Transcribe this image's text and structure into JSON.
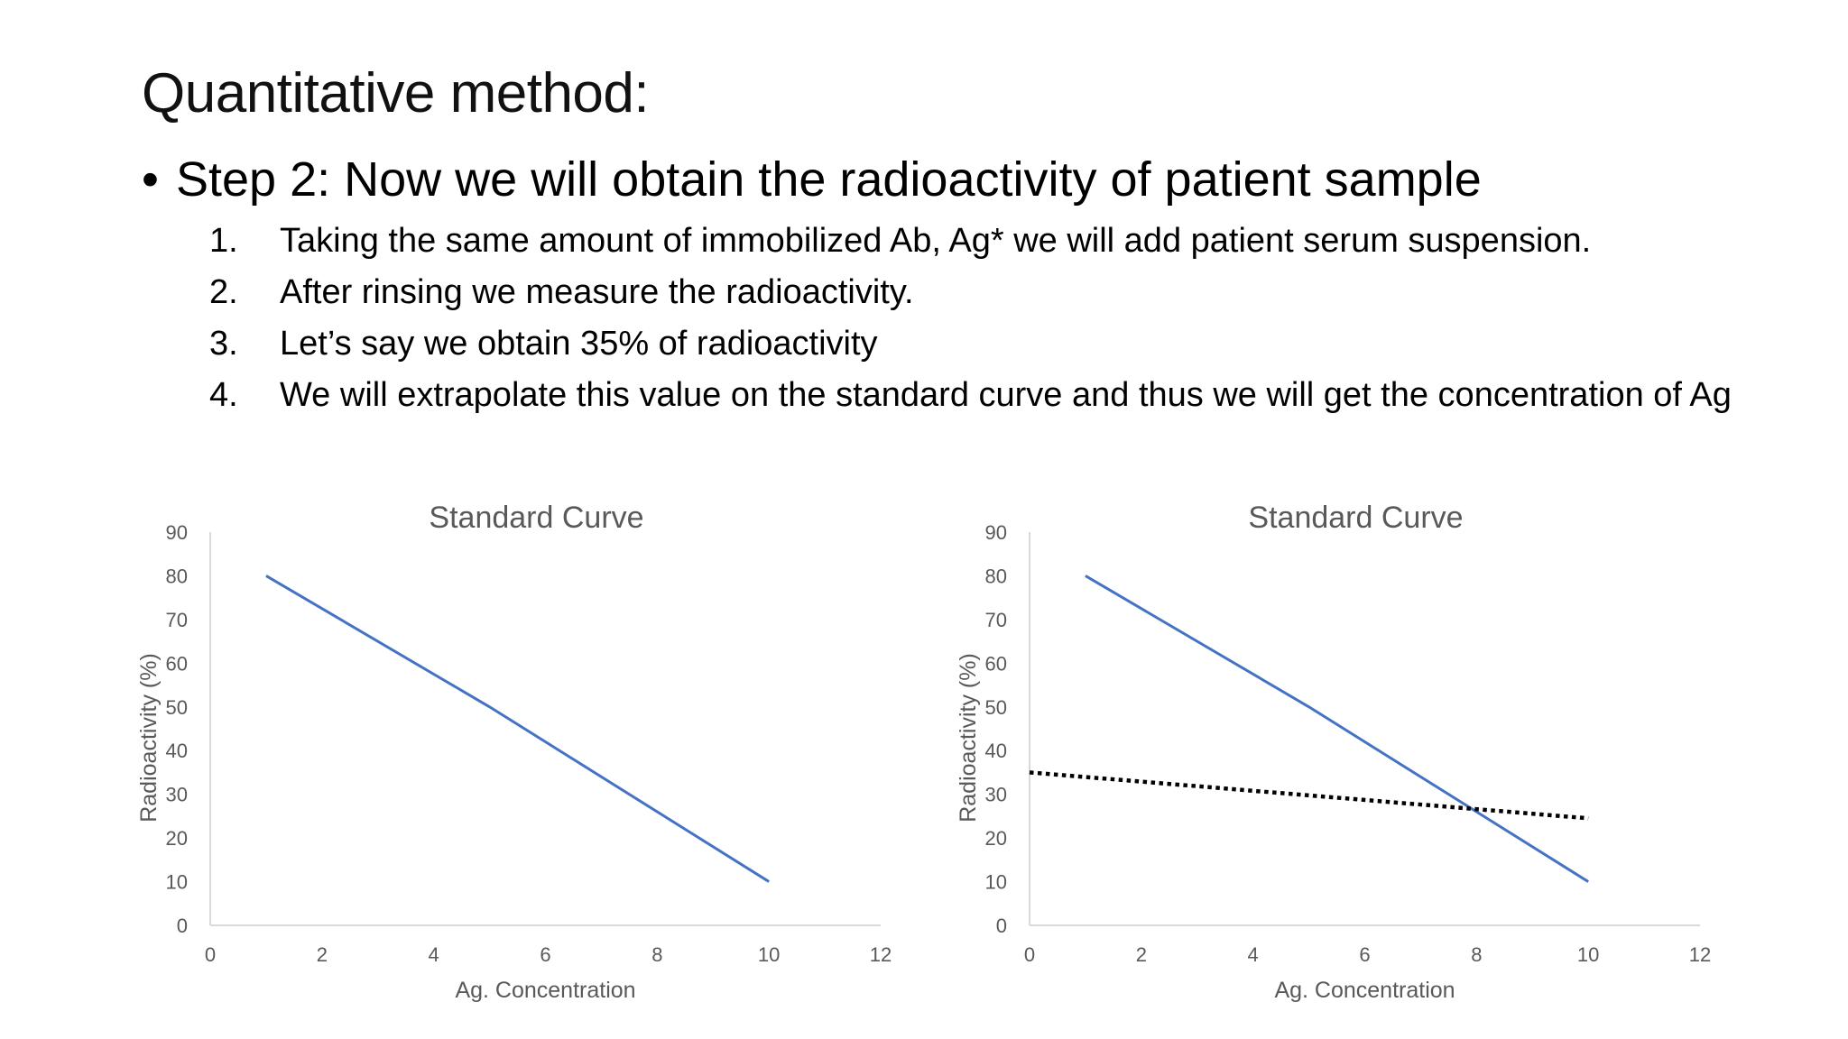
{
  "slide": {
    "title": "Quantitative method:",
    "bullet": "Step 2: Now we will obtain the radioactivity of patient sample",
    "bullet_symbol": "•",
    "steps": [
      {
        "num": "1.",
        "text": "Taking the same amount of immobilized Ab, Ag* we will add patient serum suspension."
      },
      {
        "num": "2.",
        "text": "After rinsing we measure the radioactivity."
      },
      {
        "num": "3.",
        "text": "Let’s say we obtain 35% of radioactivity"
      },
      {
        "num": "4.",
        "text": "We will extrapolate this value on the standard curve and thus we will get the concentration of Ag"
      }
    ]
  },
  "chart_data": [
    {
      "type": "line",
      "title": "Standard Curve",
      "xlabel": "Ag. Concentration",
      "ylabel": "Radioactivity (%)",
      "xlim": [
        0,
        12
      ],
      "ylim": [
        0,
        90
      ],
      "xticks": [
        0,
        2,
        4,
        6,
        8,
        10,
        12
      ],
      "yticks": [
        0,
        10,
        20,
        30,
        40,
        50,
        60,
        70,
        80,
        90
      ],
      "grid": false,
      "legend": "none",
      "series": [
        {
          "x": [
            1,
            5,
            10
          ],
          "y": [
            80,
            50,
            10
          ],
          "color": "#4472C4",
          "style": "solid"
        }
      ]
    },
    {
      "type": "line",
      "title": "Standard Curve",
      "xlabel": "Ag. Concentration",
      "ylabel": "Radioactivity (%)",
      "xlim": [
        0,
        12
      ],
      "ylim": [
        0,
        90
      ],
      "xticks": [
        0,
        2,
        4,
        6,
        8,
        10,
        12
      ],
      "yticks": [
        0,
        10,
        20,
        30,
        40,
        50,
        60,
        70,
        80,
        90
      ],
      "grid": false,
      "legend": "none",
      "series": [
        {
          "x": [
            1,
            5,
            10
          ],
          "y": [
            80,
            50,
            10
          ],
          "color": "#4472C4",
          "style": "solid"
        },
        {
          "x": [
            0,
            10
          ],
          "y": [
            35,
            24.5
          ],
          "color": "#000000",
          "style": "dotted"
        }
      ]
    }
  ]
}
